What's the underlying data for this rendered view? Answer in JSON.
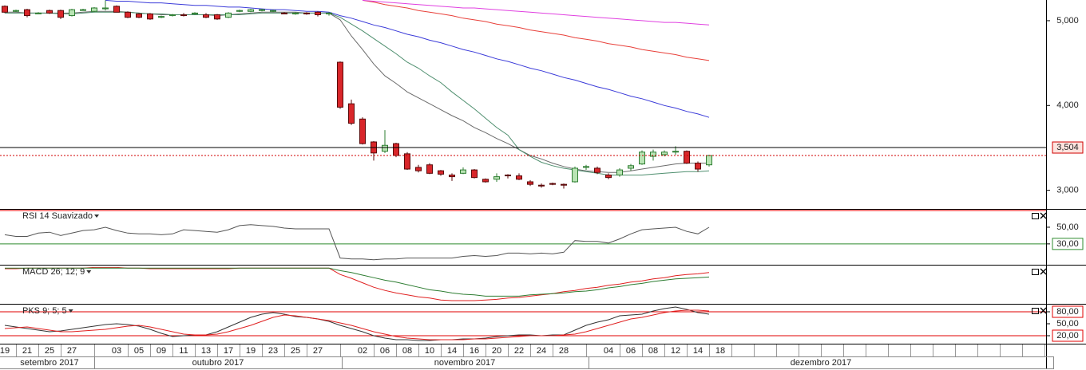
{
  "chart_data": [
    {
      "type": "candlestick",
      "categories": [
        "19",
        null,
        "21",
        null,
        "25",
        null,
        "27",
        null,
        null,
        null,
        "03",
        null,
        "05",
        null,
        "09",
        null,
        "11",
        null,
        "13",
        null,
        "17",
        null,
        "19",
        null,
        "23",
        null,
        "25",
        null,
        "27",
        null,
        null,
        null,
        "02",
        null,
        "06",
        null,
        "08",
        null,
        "10",
        null,
        "14",
        null,
        "16",
        null,
        "20",
        null,
        "22",
        null,
        "24",
        null,
        "28",
        null,
        null,
        null,
        "04",
        null,
        "06",
        null,
        "08",
        null,
        "12",
        null,
        "14",
        null,
        "18"
      ],
      "months": [
        "setembro 2017",
        "outubro 2017",
        "novembro 2017",
        "dezembro 2017"
      ],
      "open": [
        5.17,
        5.11,
        5.13,
        5.09,
        5.12,
        5.12,
        5.06,
        5.13,
        5.11,
        5.14,
        5.17,
        5.1,
        5.08,
        5.08,
        5.04,
        5.06,
        5.07,
        5.08,
        5.07,
        5.07,
        5.04,
        5.11,
        5.11,
        5.12,
        5.11,
        5.09,
        5.08,
        5.09,
        5.1,
        5.08,
        4.51,
        4.02,
        3.84,
        3.57,
        3.46,
        3.55,
        3.43,
        3.27,
        3.3,
        3.23,
        3.18,
        3.2,
        3.24,
        3.13,
        3.13,
        3.18,
        3.17,
        3.1,
        3.06,
        3.08,
        3.07,
        3.1,
        3.27,
        3.26,
        3.18,
        3.18,
        3.26,
        3.31,
        3.4,
        3.42,
        3.45,
        3.46,
        3.32,
        3.3,
        null
      ],
      "high": [
        5.18,
        5.13,
        5.14,
        5.1,
        5.13,
        5.13,
        5.14,
        5.14,
        5.16,
        5.24,
        5.18,
        5.11,
        5.09,
        5.09,
        5.06,
        5.08,
        5.09,
        5.1,
        5.09,
        5.08,
        5.1,
        5.13,
        5.14,
        5.14,
        5.13,
        5.1,
        5.1,
        5.1,
        5.11,
        5.1,
        4.52,
        4.07,
        3.86,
        3.58,
        3.71,
        3.56,
        3.45,
        3.3,
        3.32,
        3.24,
        3.2,
        3.27,
        3.25,
        3.14,
        3.2,
        3.19,
        3.2,
        3.12,
        3.08,
        3.09,
        3.08,
        3.28,
        3.3,
        3.28,
        3.2,
        3.26,
        3.31,
        3.47,
        3.48,
        3.47,
        3.52,
        3.47,
        3.34,
        3.42,
        null
      ],
      "low": [
        5.09,
        5.1,
        5.04,
        5.08,
        5.08,
        5.02,
        5.05,
        5.12,
        5.1,
        5.12,
        5.1,
        5.03,
        5.03,
        5.01,
        5.03,
        5.05,
        5.05,
        5.07,
        5.03,
        5.01,
        5.03,
        5.1,
        5.1,
        5.11,
        5.1,
        5.08,
        5.07,
        5.07,
        5.05,
        5.06,
        3.96,
        3.77,
        3.54,
        3.35,
        3.44,
        3.39,
        3.24,
        3.21,
        3.19,
        3.17,
        3.11,
        3.19,
        3.14,
        3.09,
        3.1,
        3.14,
        3.12,
        3.05,
        3.03,
        3.06,
        3.02,
        3.09,
        3.24,
        3.19,
        3.13,
        3.16,
        3.23,
        3.3,
        3.35,
        3.4,
        3.42,
        3.31,
        3.22,
        3.28,
        null
      ],
      "close": [
        5.1,
        5.12,
        5.06,
        5.09,
        5.09,
        5.04,
        5.13,
        5.13,
        5.15,
        5.15,
        5.1,
        5.04,
        5.04,
        5.02,
        5.05,
        5.07,
        5.06,
        5.09,
        5.04,
        5.02,
        5.09,
        5.12,
        5.13,
        5.13,
        5.12,
        5.08,
        5.09,
        5.08,
        5.07,
        5.09,
        3.98,
        3.79,
        3.55,
        3.44,
        3.53,
        3.41,
        3.25,
        3.23,
        3.2,
        3.19,
        3.16,
        3.24,
        3.15,
        3.1,
        3.16,
        3.17,
        3.13,
        3.07,
        3.05,
        3.07,
        3.06,
        3.26,
        3.28,
        3.21,
        3.15,
        3.24,
        3.29,
        3.45,
        3.45,
        3.45,
        3.46,
        3.32,
        3.25,
        3.41,
        null
      ],
      "up_color": "#b9e4b4",
      "up_border": "#2e7d32",
      "down_color": "#d9262a",
      "down_border": "#5a0a0a",
      "series": [
        {
          "color": "#6b6b6b",
          "values": [
            5.1,
            5.1,
            5.09,
            5.09,
            5.09,
            5.09,
            5.09,
            5.1,
            5.11,
            5.11,
            5.11,
            5.1,
            5.09,
            5.08,
            5.07,
            5.07,
            5.07,
            5.07,
            5.07,
            5.06,
            5.07,
            5.08,
            5.09,
            5.1,
            5.1,
            5.1,
            5.1,
            5.09,
            5.09,
            5.09,
            5.01,
            4.82,
            4.66,
            4.49,
            4.35,
            4.26,
            4.16,
            4.09,
            4.02,
            3.95,
            3.88,
            3.82,
            3.74,
            3.68,
            3.61,
            3.55,
            3.48,
            3.41,
            3.37,
            3.32,
            3.28,
            3.25,
            3.23,
            3.22,
            3.21,
            3.21,
            3.23,
            3.25,
            3.27,
            3.29,
            3.31,
            3.32,
            3.32,
            3.32,
            null
          ]
        },
        {
          "color": "#4f8f6f",
          "values": [
            5.09,
            5.09,
            5.09,
            5.09,
            5.09,
            5.08,
            5.08,
            5.09,
            5.1,
            5.1,
            5.1,
            5.1,
            5.09,
            5.08,
            5.08,
            5.07,
            5.07,
            5.07,
            5.07,
            5.07,
            5.07,
            5.07,
            5.08,
            5.09,
            5.09,
            5.09,
            5.09,
            5.09,
            5.09,
            5.09,
            5.04,
            4.96,
            4.88,
            4.79,
            4.7,
            4.61,
            4.51,
            4.44,
            4.35,
            4.27,
            4.16,
            4.06,
            3.96,
            3.85,
            3.74,
            3.65,
            3.48,
            3.4,
            3.33,
            3.29,
            3.26,
            3.24,
            3.22,
            3.2,
            3.18,
            3.18,
            3.18,
            3.18,
            3.19,
            3.2,
            3.21,
            3.22,
            3.22,
            3.23,
            null
          ]
        },
        {
          "color": "#3b3bd9",
          "values": [
            null,
            null,
            null,
            null,
            null,
            null,
            null,
            null,
            null,
            5.24,
            5.23,
            5.23,
            5.22,
            5.21,
            5.21,
            5.2,
            5.19,
            5.18,
            5.18,
            5.17,
            5.16,
            5.16,
            5.15,
            5.14,
            5.13,
            5.13,
            5.12,
            5.11,
            5.11,
            5.1,
            5.06,
            5.03,
            4.99,
            4.95,
            4.92,
            4.88,
            4.84,
            4.81,
            4.77,
            4.74,
            4.7,
            4.66,
            4.63,
            4.59,
            4.55,
            4.52,
            4.48,
            4.44,
            4.41,
            4.37,
            4.33,
            4.3,
            4.26,
            4.22,
            4.19,
            4.15,
            4.11,
            4.08,
            4.04,
            4.0,
            3.97,
            3.93,
            3.9,
            3.86,
            null
          ]
        },
        {
          "color": "#e8403a",
          "values": [
            null,
            null,
            null,
            null,
            null,
            null,
            null,
            null,
            null,
            null,
            null,
            null,
            null,
            null,
            null,
            null,
            null,
            null,
            null,
            null,
            null,
            null,
            null,
            null,
            null,
            null,
            null,
            null,
            null,
            null,
            null,
            null,
            5.24,
            5.22,
            5.19,
            5.17,
            5.15,
            5.12,
            5.1,
            5.08,
            5.06,
            5.03,
            5.01,
            4.99,
            4.96,
            4.94,
            4.92,
            4.89,
            4.87,
            4.85,
            4.83,
            4.8,
            4.78,
            4.76,
            4.73,
            4.71,
            4.69,
            4.66,
            4.64,
            4.62,
            4.6,
            4.57,
            4.55,
            4.53,
            null
          ]
        },
        {
          "color": "#e040e0",
          "values": [
            null,
            null,
            null,
            null,
            null,
            null,
            null,
            null,
            null,
            null,
            null,
            null,
            null,
            null,
            null,
            null,
            null,
            null,
            null,
            null,
            null,
            null,
            null,
            null,
            null,
            null,
            null,
            null,
            null,
            null,
            null,
            null,
            5.24,
            5.23,
            5.22,
            5.21,
            5.2,
            5.19,
            5.18,
            5.17,
            5.16,
            5.15,
            5.15,
            5.14,
            5.13,
            5.12,
            5.11,
            5.1,
            5.09,
            5.08,
            5.07,
            5.06,
            5.05,
            5.04,
            5.03,
            5.02,
            5.01,
            5.0,
            4.99,
            4.98,
            4.98,
            4.97,
            4.96,
            4.95,
            null
          ]
        }
      ],
      "ylim": [
        2.78,
        5.244
      ],
      "yticks": [
        {
          "value": 5,
          "label": "5,000"
        },
        {
          "value": 4,
          "label": "4,000"
        },
        {
          "value": 3,
          "label": "3,000"
        }
      ],
      "price_marker": {
        "value": 3.504,
        "label": "3,504"
      }
    },
    {
      "type": "line",
      "title": "RSI 14 Suavizado",
      "series": [
        {
          "color": "#555555",
          "values": [
            41,
            39,
            39,
            43,
            44,
            40,
            43,
            46,
            47,
            50,
            46,
            43,
            42,
            42,
            41,
            42,
            47,
            46,
            45,
            44,
            47,
            52,
            53,
            52,
            51,
            49,
            48,
            48,
            48,
            48,
            13,
            12,
            12,
            11,
            12,
            12,
            13,
            13,
            13,
            13,
            13,
            15,
            16,
            15,
            16,
            19,
            19,
            18,
            19,
            18,
            20,
            34,
            33,
            33,
            31,
            36,
            42,
            47,
            48,
            49,
            50,
            45,
            42,
            50,
            null
          ]
        }
      ],
      "ylim": [
        5,
        71
      ],
      "yticks": [
        {
          "value": 50,
          "label": "50,00"
        },
        {
          "value": 30,
          "label": "30,00"
        }
      ],
      "levels": [
        70,
        30
      ],
      "level_colors": [
        "#e00000",
        "#2e8b2e"
      ]
    },
    {
      "type": "line",
      "title": "MACD 26; 12; 9",
      "series": [
        {
          "color": "#e02020",
          "values": [
            0.0,
            0.0,
            0.01,
            0.01,
            0.01,
            0.01,
            0.01,
            0.01,
            0.02,
            0.02,
            0.02,
            0.01,
            0.01,
            0.0,
            0.0,
            0.0,
            0.0,
            0.0,
            0.0,
            0.0,
            0.0,
            0.01,
            0.01,
            0.01,
            0.01,
            0.01,
            0.01,
            0.01,
            0.01,
            0.01,
            -0.09,
            -0.15,
            -0.22,
            -0.29,
            -0.34,
            -0.38,
            -0.41,
            -0.44,
            -0.46,
            -0.49,
            -0.5,
            -0.5,
            -0.5,
            -0.49,
            -0.48,
            -0.46,
            -0.45,
            -0.43,
            -0.41,
            -0.39,
            -0.36,
            -0.34,
            -0.31,
            -0.29,
            -0.26,
            -0.24,
            -0.21,
            -0.19,
            -0.16,
            -0.14,
            -0.11,
            -0.09,
            -0.08,
            -0.06,
            null
          ]
        },
        {
          "color": "#2e7d32",
          "values": [
            0.01,
            0.01,
            0.01,
            0.01,
            0.01,
            0.01,
            0.01,
            0.01,
            0.01,
            0.01,
            0.01,
            0.01,
            0.01,
            0.01,
            0.01,
            0.01,
            0.01,
            0.01,
            0.01,
            0.01,
            0.01,
            0.01,
            0.01,
            0.01,
            0.01,
            0.01,
            0.01,
            0.01,
            0.01,
            0.01,
            -0.03,
            -0.06,
            -0.1,
            -0.14,
            -0.18,
            -0.21,
            -0.25,
            -0.29,
            -0.33,
            -0.35,
            -0.38,
            -0.4,
            -0.41,
            -0.43,
            -0.43,
            -0.43,
            -0.43,
            -0.41,
            -0.4,
            -0.39,
            -0.38,
            -0.36,
            -0.35,
            -0.33,
            -0.3,
            -0.28,
            -0.25,
            -0.23,
            -0.2,
            -0.18,
            -0.16,
            -0.15,
            -0.14,
            -0.13,
            null
          ]
        }
      ],
      "ylim": [
        -0.55,
        0.05
      ]
    },
    {
      "type": "line",
      "title": "PKS 9; 5; 5",
      "series": [
        {
          "color": "#333333",
          "values": [
            46,
            42,
            38,
            34,
            30,
            32,
            36,
            40,
            44,
            48,
            50,
            48,
            44,
            36,
            26,
            18,
            20,
            22,
            22,
            30,
            42,
            54,
            66,
            74,
            78,
            74,
            68,
            66,
            62,
            56,
            46,
            38,
            30,
            20,
            14,
            10,
            10,
            8,
            8,
            10,
            10,
            12,
            12,
            14,
            18,
            20,
            22,
            22,
            20,
            22,
            22,
            34,
            46,
            54,
            60,
            70,
            72,
            74,
            82,
            88,
            92,
            86,
            78,
            74,
            null
          ]
        },
        {
          "color": "#e02020",
          "values": [
            38,
            40,
            42,
            38,
            34,
            30,
            30,
            32,
            34,
            36,
            40,
            44,
            46,
            42,
            36,
            30,
            24,
            22,
            22,
            24,
            30,
            38,
            46,
            56,
            66,
            72,
            70,
            66,
            62,
            58,
            52,
            46,
            38,
            30,
            24,
            18,
            14,
            12,
            10,
            10,
            10,
            10,
            12,
            12,
            14,
            16,
            18,
            20,
            20,
            20,
            22,
            24,
            30,
            38,
            46,
            54,
            62,
            66,
            72,
            78,
            82,
            84,
            84,
            82,
            null
          ]
        }
      ],
      "ylim": [
        2,
        98
      ],
      "yticks": [
        {
          "value": 80,
          "label": "80,00"
        },
        {
          "value": 50,
          "label": "50,00"
        },
        {
          "value": 20,
          "label": "20,00"
        }
      ],
      "levels": [
        80,
        20
      ],
      "level_colors": [
        "#e00000",
        "#e00000"
      ]
    }
  ]
}
